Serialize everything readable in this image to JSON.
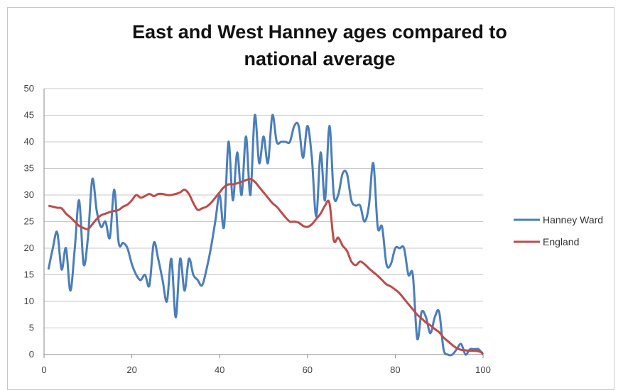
{
  "chart_data": {
    "type": "line",
    "title_line1": "East and West Hanney ages compared to",
    "title_line2": "national average",
    "xlabel": "",
    "ylabel": "",
    "xlim": [
      0,
      100
    ],
    "ylim": [
      0,
      50
    ],
    "x_ticks": [
      0,
      20,
      40,
      60,
      80,
      100
    ],
    "y_ticks": [
      0,
      5,
      10,
      15,
      20,
      25,
      30,
      35,
      40,
      45,
      50
    ],
    "grid": "horizontal",
    "legend_position": "right",
    "series": [
      {
        "name": "Hanney Ward",
        "color": "#4a7ebb",
        "x": [
          1,
          2,
          3,
          4,
          5,
          6,
          7,
          8,
          9,
          10,
          11,
          12,
          13,
          14,
          15,
          16,
          17,
          18,
          19,
          20,
          21,
          22,
          23,
          24,
          25,
          26,
          27,
          28,
          29,
          30,
          31,
          32,
          33,
          34,
          35,
          36,
          37,
          38,
          39,
          40,
          41,
          42,
          43,
          44,
          45,
          46,
          47,
          48,
          49,
          50,
          51,
          52,
          53,
          54,
          55,
          56,
          57,
          58,
          59,
          60,
          61,
          62,
          63,
          64,
          65,
          66,
          67,
          68,
          69,
          70,
          71,
          72,
          73,
          74,
          75,
          76,
          77,
          78,
          79,
          80,
          81,
          82,
          83,
          84,
          85,
          86,
          87,
          88,
          89,
          90,
          91,
          92,
          93,
          94,
          95,
          96,
          97,
          98,
          99,
          100
        ],
        "values": [
          16,
          20,
          23,
          16,
          20,
          12,
          20,
          29,
          17,
          22,
          33,
          27,
          24,
          25,
          22,
          31,
          21,
          21,
          20,
          17,
          15,
          14,
          15,
          13,
          21,
          18,
          14,
          10,
          18,
          7,
          18,
          12,
          18,
          15,
          14,
          13,
          16,
          20,
          25,
          30,
          24,
          40,
          29,
          38,
          30,
          41,
          30,
          45,
          36,
          41,
          36,
          45,
          40,
          40,
          40,
          40,
          43,
          43,
          37,
          43,
          37,
          26,
          38,
          29,
          43,
          30,
          30,
          34,
          34,
          29,
          28,
          28,
          25,
          28,
          36,
          24,
          24,
          17,
          17,
          20,
          20,
          20,
          15,
          15,
          3,
          8,
          7,
          4,
          7,
          8,
          1,
          0,
          0,
          1,
          2,
          0,
          1,
          1,
          1,
          0
        ]
      },
      {
        "name": "England",
        "color": "#be4b48",
        "x": [
          1,
          2,
          3,
          4,
          5,
          6,
          7,
          8,
          9,
          10,
          11,
          12,
          13,
          14,
          15,
          16,
          17,
          18,
          19,
          20,
          21,
          22,
          23,
          24,
          25,
          26,
          27,
          28,
          29,
          30,
          31,
          32,
          33,
          34,
          35,
          36,
          37,
          38,
          39,
          40,
          41,
          42,
          43,
          44,
          45,
          46,
          47,
          48,
          49,
          50,
          51,
          52,
          53,
          54,
          55,
          56,
          57,
          58,
          59,
          60,
          61,
          62,
          63,
          64,
          65,
          66,
          67,
          68,
          69,
          70,
          71,
          72,
          73,
          74,
          75,
          76,
          77,
          78,
          79,
          80,
          81,
          82,
          83,
          84,
          85,
          86,
          87,
          88,
          89,
          90,
          91,
          92,
          93,
          94,
          95,
          96,
          97,
          98,
          99,
          100
        ],
        "values": [
          28,
          27.8,
          27.6,
          27.5,
          26.5,
          25.8,
          25,
          24.2,
          23.8,
          23.6,
          24.5,
          25.5,
          26.2,
          26.5,
          26.8,
          27,
          27.2,
          27.8,
          28.2,
          29,
          30,
          29.5,
          29.8,
          30.2,
          29.8,
          30.2,
          30.2,
          30,
          30,
          30.2,
          30.5,
          31,
          30.2,
          28.5,
          27.2,
          27.5,
          27.8,
          28.5,
          29.5,
          30.5,
          31.5,
          32,
          32,
          32.2,
          32.5,
          32.8,
          33,
          32.5,
          31.5,
          30.5,
          29.5,
          28.5,
          27.8,
          26.8,
          25.8,
          25,
          25,
          24.8,
          24.2,
          24,
          24.5,
          25.5,
          26.5,
          28,
          28.5,
          21.5,
          22,
          20.5,
          19.5,
          17.5,
          16.8,
          17.5,
          17,
          16.2,
          15.5,
          14.8,
          14,
          13.2,
          12.8,
          12.2,
          11.5,
          10.5,
          9.5,
          8.5,
          7.5,
          6.8,
          6,
          5.5,
          4.8,
          4.2,
          3.2,
          2.5,
          1.8,
          1.2,
          0.9,
          0.8,
          0.7,
          0.7,
          0.6,
          0.3
        ]
      }
    ]
  }
}
